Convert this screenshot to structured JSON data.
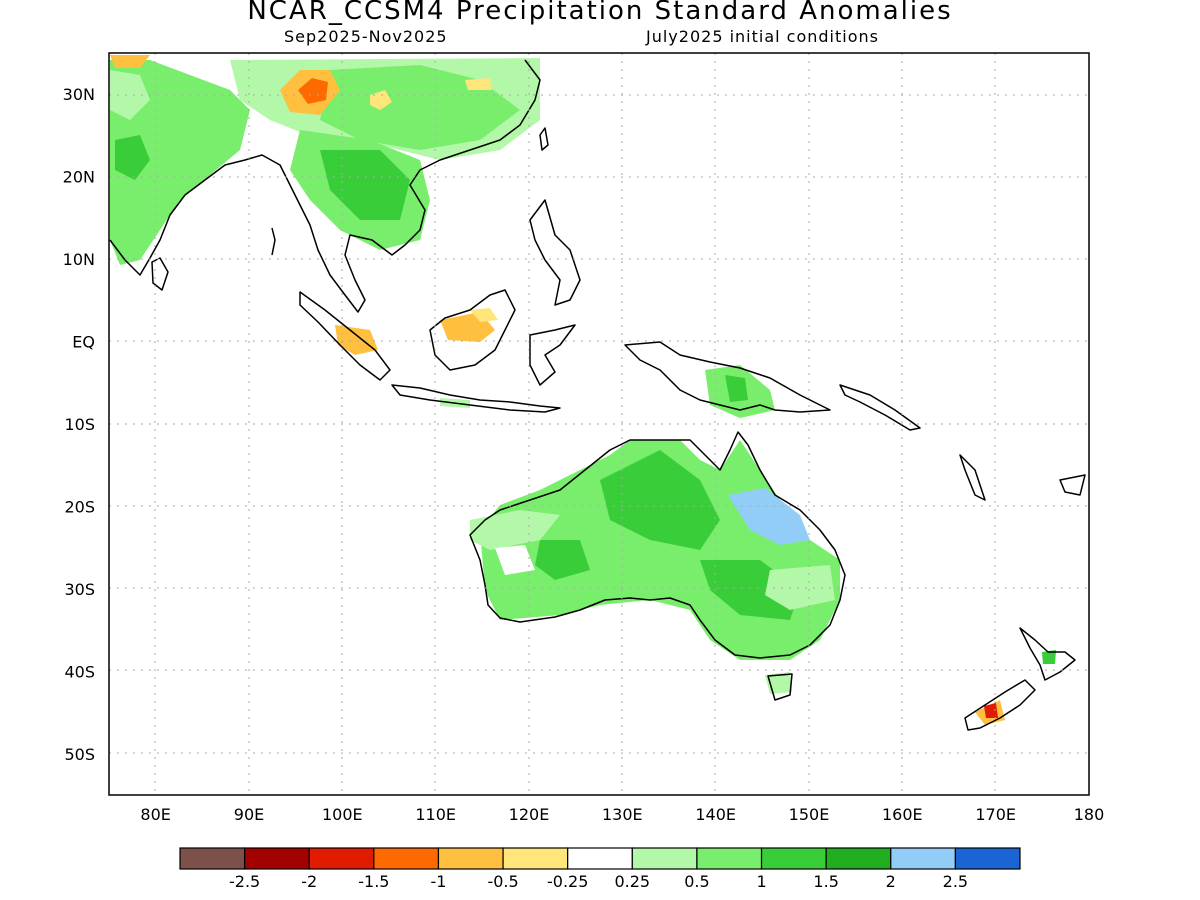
{
  "title": "NCAR_CCSM4 Precipitation Standard Anomalies",
  "subtitle_left": "Sep2025-Nov2025",
  "subtitle_right": "July2025 initial conditions",
  "map": {
    "lon_range": [
      75,
      180
    ],
    "lat_range": [
      -55,
      35
    ],
    "lat_labels": [
      {
        "lat": 30,
        "text": "30N"
      },
      {
        "lat": 20,
        "text": "20N"
      },
      {
        "lat": 10,
        "text": "10N"
      },
      {
        "lat": 0,
        "text": "EQ"
      },
      {
        "lat": -10,
        "text": "10S"
      },
      {
        "lat": -20,
        "text": "20S"
      },
      {
        "lat": -30,
        "text": "30S"
      },
      {
        "lat": -40,
        "text": "40S"
      },
      {
        "lat": -50,
        "text": "50S"
      }
    ],
    "lon_labels": [
      {
        "lon": 80,
        "text": "80E"
      },
      {
        "lon": 90,
        "text": "90E"
      },
      {
        "lon": 100,
        "text": "100E"
      },
      {
        "lon": 110,
        "text": "110E"
      },
      {
        "lon": 120,
        "text": "120E"
      },
      {
        "lon": 130,
        "text": "130E"
      },
      {
        "lon": 140,
        "text": "140E"
      },
      {
        "lon": 150,
        "text": "150E"
      },
      {
        "lon": 160,
        "text": "160E"
      },
      {
        "lon": 170,
        "text": "170E"
      },
      {
        "lon": 180,
        "text": "180"
      }
    ]
  },
  "colorbar": {
    "colors": [
      "#7b5149",
      "#a30000",
      "#e01b00",
      "#ff6a00",
      "#ffbf3f",
      "#ffe57a",
      "#ffffff",
      "#b3f7a8",
      "#79ee6d",
      "#3acd3a",
      "#20ae20",
      "#92cdf7",
      "#1a64d4"
    ],
    "labels": [
      "-2.5",
      "-2",
      "-1.5",
      "-1",
      "-0.5",
      "-0.25",
      "0.25",
      "0.5",
      "1",
      "1.5",
      "2",
      "2.5"
    ]
  }
}
